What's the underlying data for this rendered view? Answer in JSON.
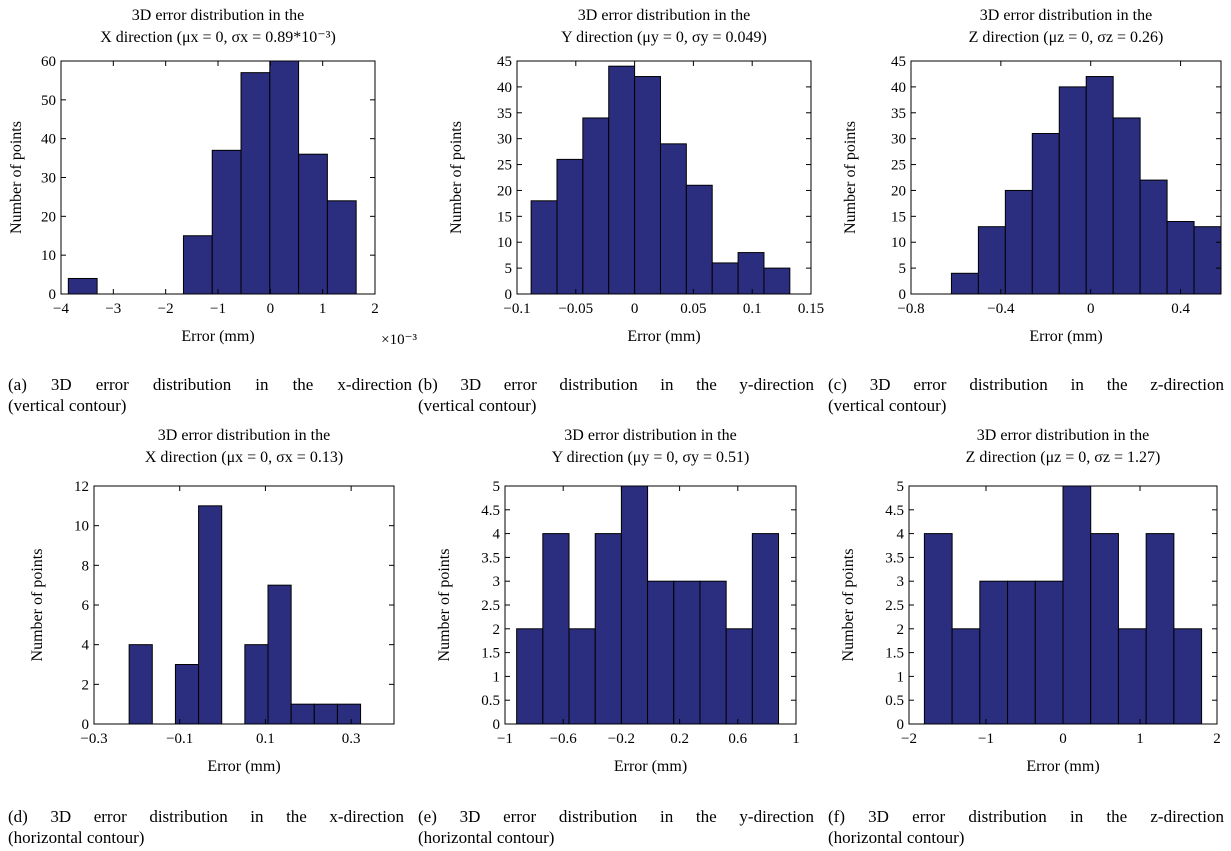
{
  "colors": {
    "bar": "#2b2e7f",
    "bar_edge": "#000000",
    "axis": "#000000"
  },
  "figure_captions": [
    {
      "main": "(a)  3D  error  distribution  in  the  x-direction",
      "sub": "(vertical contour)"
    },
    {
      "main": "(b)  3D error distribution in the y-direction",
      "sub": "(vertical contour)"
    },
    {
      "main": "(c)  3D error distribution in the z-direction",
      "sub": "(vertical contour)"
    },
    {
      "main": "(d)  3D error distribution in the x-direction",
      "sub": "(horizontal contour)"
    },
    {
      "main": "(e)  3D error distribution in the y-direction",
      "sub": "(horizontal contour)"
    },
    {
      "main": "(f)  3D error distribution in the z-direction",
      "sub": "(horizontal contour)"
    }
  ],
  "chart_data": [
    {
      "type": "bar",
      "title_line1": "3D error distribution in the",
      "title_line2": "X direction (μx = 0, σx = 0.89*10⁻³)",
      "xlabel": "Error (mm)",
      "ylabel": "Number of points",
      "x_multiplier": "×10⁻³",
      "xlim": [
        -4,
        2
      ],
      "ylim": [
        0,
        60
      ],
      "xticks": [
        -4,
        -3,
        -2,
        -1,
        0,
        1,
        2
      ],
      "xtick_labels": [
        "−4",
        "−3",
        "−2",
        "−1",
        "0",
        "1",
        "2"
      ],
      "yticks": [
        0,
        10,
        20,
        30,
        40,
        50,
        60
      ],
      "bin_edges": [
        -3.86,
        -3.31,
        -2.76,
        -2.21,
        -1.66,
        -1.11,
        -0.56,
        -0.01,
        0.54,
        1.09,
        1.64
      ],
      "values": [
        4,
        0,
        0,
        0,
        15,
        37,
        57,
        60,
        36,
        24
      ]
    },
    {
      "type": "bar",
      "title_line1": "3D error distribution in the",
      "title_line2": "Y direction (μy = 0, σy = 0.049)",
      "xlabel": "Error (mm)",
      "ylabel": "Number of points",
      "xlim": [
        -0.1,
        0.15
      ],
      "ylim": [
        0,
        45
      ],
      "xticks": [
        -0.1,
        -0.05,
        0,
        0.05,
        0.1,
        0.15
      ],
      "xtick_labels": [
        "−0.1",
        "−0.05",
        "0",
        "0.05",
        "0.1",
        "0.15"
      ],
      "yticks": [
        0,
        5,
        10,
        15,
        20,
        25,
        30,
        35,
        40,
        45
      ],
      "bin_edges": [
        -0.088,
        -0.066,
        -0.044,
        -0.022,
        0.0,
        0.022,
        0.044,
        0.066,
        0.088,
        0.11,
        0.132
      ],
      "values": [
        18,
        26,
        34,
        44,
        42,
        29,
        21,
        6,
        8,
        5
      ]
    },
    {
      "type": "bar",
      "title_line1": "3D error distribution in the",
      "title_line2": "Z direction (μz = 0, σz = 0.26)",
      "xlabel": "Error (mm)",
      "ylabel": "Number of points",
      "xlim": [
        -0.8,
        0.58
      ],
      "ylim": [
        0,
        45
      ],
      "xticks": [
        -0.8,
        -0.4,
        0,
        0.4
      ],
      "xtick_labels": [
        "−0.8",
        "−0.4",
        "0",
        "0.4"
      ],
      "yticks": [
        0,
        5,
        10,
        15,
        20,
        25,
        30,
        35,
        40,
        45
      ],
      "bin_edges": [
        -0.62,
        -0.5,
        -0.38,
        -0.26,
        -0.14,
        -0.02,
        0.1,
        0.22,
        0.34,
        0.46,
        0.58
      ],
      "values": [
        4,
        13,
        20,
        31,
        40,
        42,
        34,
        22,
        14,
        13
      ]
    },
    {
      "type": "bar",
      "title_line1": "3D error distribution in the",
      "title_line2": "X direction (μx = 0, σx = 0.13)",
      "xlabel": "Error (mm)",
      "ylabel": "Number of points",
      "xlim": [
        -0.3,
        0.4
      ],
      "ylim": [
        0,
        12
      ],
      "xticks": [
        -0.3,
        -0.1,
        0.1,
        0.3
      ],
      "xtick_labels": [
        "−0.3",
        "−0.1",
        "0.1",
        "0.3"
      ],
      "yticks": [
        0,
        2,
        4,
        6,
        8,
        10,
        12
      ],
      "bin_edges": [
        -0.218,
        -0.164,
        -0.11,
        -0.056,
        -0.002,
        0.052,
        0.106,
        0.16,
        0.214,
        0.268,
        0.322
      ],
      "values": [
        4,
        0,
        3,
        11,
        0,
        4,
        7,
        1,
        1,
        1
      ]
    },
    {
      "type": "bar",
      "title_line1": "3D error distribution in the",
      "title_line2": "Y direction (μy = 0, σy = 0.51)",
      "xlabel": "Error (mm)",
      "ylabel": "Number of points",
      "xlim": [
        -1,
        1
      ],
      "ylim": [
        0,
        5
      ],
      "xticks": [
        -1,
        -0.6,
        -0.2,
        0.2,
        0.6,
        1
      ],
      "xtick_labels": [
        "−1",
        "−0.6",
        "−0.2",
        "0.2",
        "0.6",
        "1"
      ],
      "yticks": [
        0,
        0.5,
        1,
        1.5,
        2,
        2.5,
        3,
        3.5,
        4,
        4.5,
        5
      ],
      "bin_edges": [
        -0.92,
        -0.74,
        -0.56,
        -0.38,
        -0.2,
        -0.02,
        0.16,
        0.34,
        0.52,
        0.7,
        0.88
      ],
      "values": [
        2,
        4,
        2,
        4,
        5,
        3,
        3,
        3,
        2,
        4
      ]
    },
    {
      "type": "bar",
      "title_line1": "3D error distribution in the",
      "title_line2": "Z direction (μz = 0, σz = 1.27)",
      "xlabel": "Error (mm)",
      "ylabel": "Number of points",
      "xlim": [
        -2,
        2
      ],
      "ylim": [
        0,
        5
      ],
      "xticks": [
        -2,
        -1,
        0,
        1,
        2
      ],
      "xtick_labels": [
        "−2",
        "−1",
        "0",
        "1",
        "2"
      ],
      "yticks": [
        0,
        0.5,
        1,
        1.5,
        2,
        2.5,
        3,
        3.5,
        4,
        4.5,
        5
      ],
      "bin_edges": [
        -1.8,
        -1.44,
        -1.08,
        -0.72,
        -0.36,
        0.0,
        0.36,
        0.72,
        1.08,
        1.44,
        1.8
      ],
      "values": [
        4,
        2,
        3,
        3,
        3,
        5,
        4,
        2,
        4,
        2
      ]
    }
  ]
}
